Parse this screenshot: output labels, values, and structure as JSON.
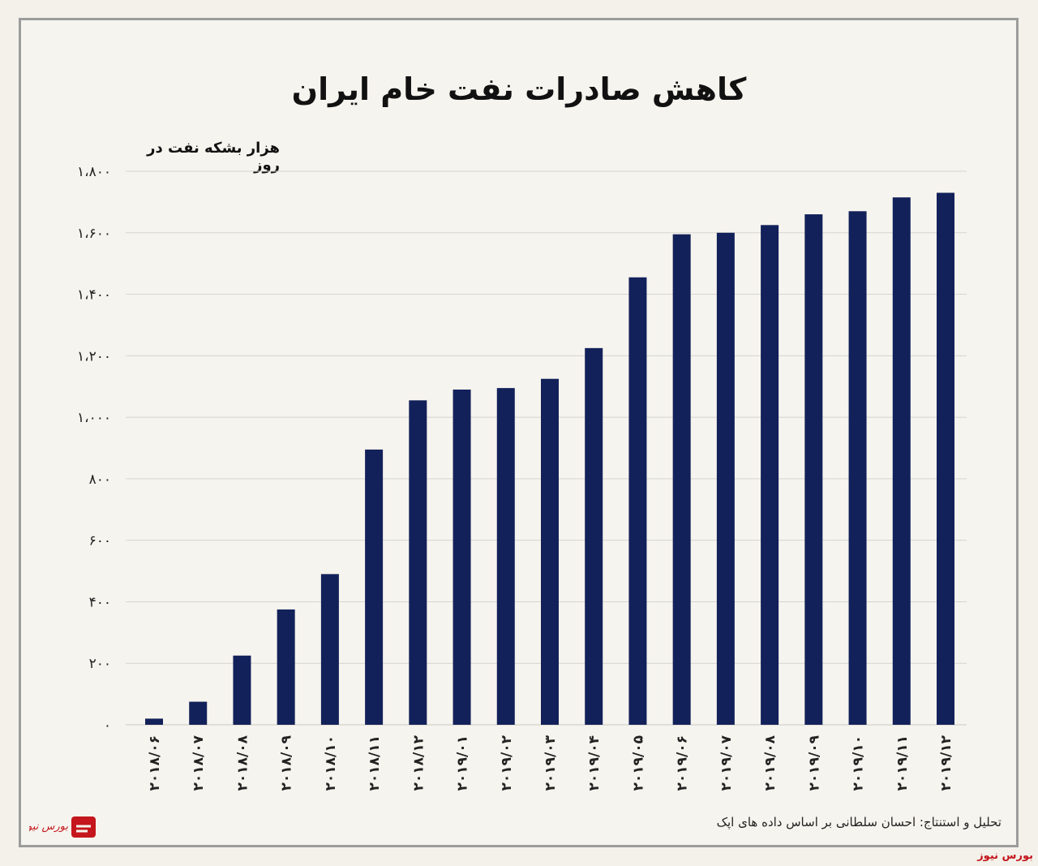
{
  "chart_data": {
    "type": "bar",
    "title": "کاهش صادرات نفت خام ایران",
    "ylabel": "هزار بشکه نفت در روز",
    "xlabel": "",
    "ylim": [
      0,
      1800
    ],
    "yticks": [
      0,
      200,
      400,
      600,
      800,
      1000,
      1200,
      1400,
      1600,
      1800
    ],
    "ytick_labels": [
      "۰",
      "۲۰۰",
      "۴۰۰",
      "۶۰۰",
      "۸۰۰",
      "۱،۰۰۰",
      "۱،۲۰۰",
      "۱،۴۰۰",
      "۱،۶۰۰",
      "۱،۸۰۰"
    ],
    "grid": true,
    "bar_color": "#13215a",
    "categories": [
      "۲۰۱۸/۰۶",
      "۲۰۱۸/۰۷",
      "۲۰۱۸/۰۸",
      "۲۰۱۸/۰۹",
      "۲۰۱۸/۱۰",
      "۲۰۱۸/۱۱",
      "۲۰۱۸/۱۲",
      "۲۰۱۹/۰۱",
      "۲۰۱۹/۰۲",
      "۲۰۱۹/۰۳",
      "۲۰۱۹/۰۴",
      "۲۰۱۹/۰۵",
      "۲۰۱۹/۰۶",
      "۲۰۱۹/۰۷",
      "۲۰۱۹/۰۸",
      "۲۰۱۹/۰۹",
      "۲۰۱۹/۱۰",
      "۲۰۱۹/۱۱",
      "۲۰۱۹/۱۲"
    ],
    "values": [
      20,
      75,
      225,
      375,
      490,
      895,
      1055,
      1090,
      1095,
      1125,
      1225,
      1455,
      1595,
      1600,
      1625,
      1660,
      1670,
      1715,
      1730
    ]
  },
  "source_note": "تحلیل و استنتاج: احسان سلطانی بر اساس داده های اپک",
  "logo_text": "بورس نیوز",
  "brand_text": "بورس نیوز",
  "colors": {
    "accent": "#c4161c",
    "background": "#f3f1ea"
  }
}
